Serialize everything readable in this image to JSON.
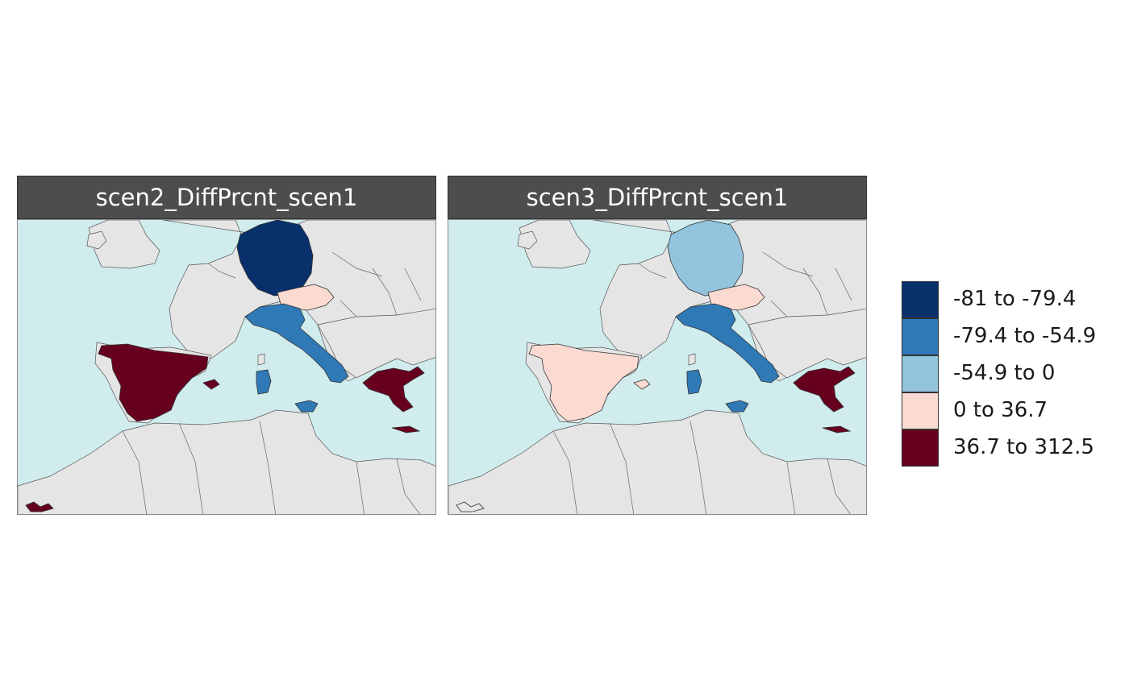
{
  "panels": [
    {
      "title": "scen2_DiffPrcnt_scen1",
      "regions": {
        "germany": "#08306b",
        "austria": "#fbdad2",
        "italy": "#3079b7",
        "spain": "#67001f",
        "greece": "#67001f",
        "canary": "#67001f"
      }
    },
    {
      "title": "scen3_DiffPrcnt_scen1",
      "regions": {
        "germany": "#92c4de",
        "austria": "#fbdad2",
        "italy": "#3079b7",
        "spain": "#fbdad2",
        "greece": "#67001f",
        "canary": "#e5e5e5"
      }
    }
  ],
  "legend": [
    {
      "label": "-81 to -79.4",
      "color": "#08306b"
    },
    {
      "label": "-79.4 to -54.9",
      "color": "#3079b7"
    },
    {
      "label": "-54.9 to 0",
      "color": "#92c4de"
    },
    {
      "label": "0 to 36.7",
      "color": "#fbdad2"
    },
    {
      "label": "36.7 to 312.5",
      "color": "#67001f"
    }
  ],
  "colors": {
    "sea": "#d0eced",
    "land": "#e5e5e5",
    "strip": "#4d4d4d"
  }
}
